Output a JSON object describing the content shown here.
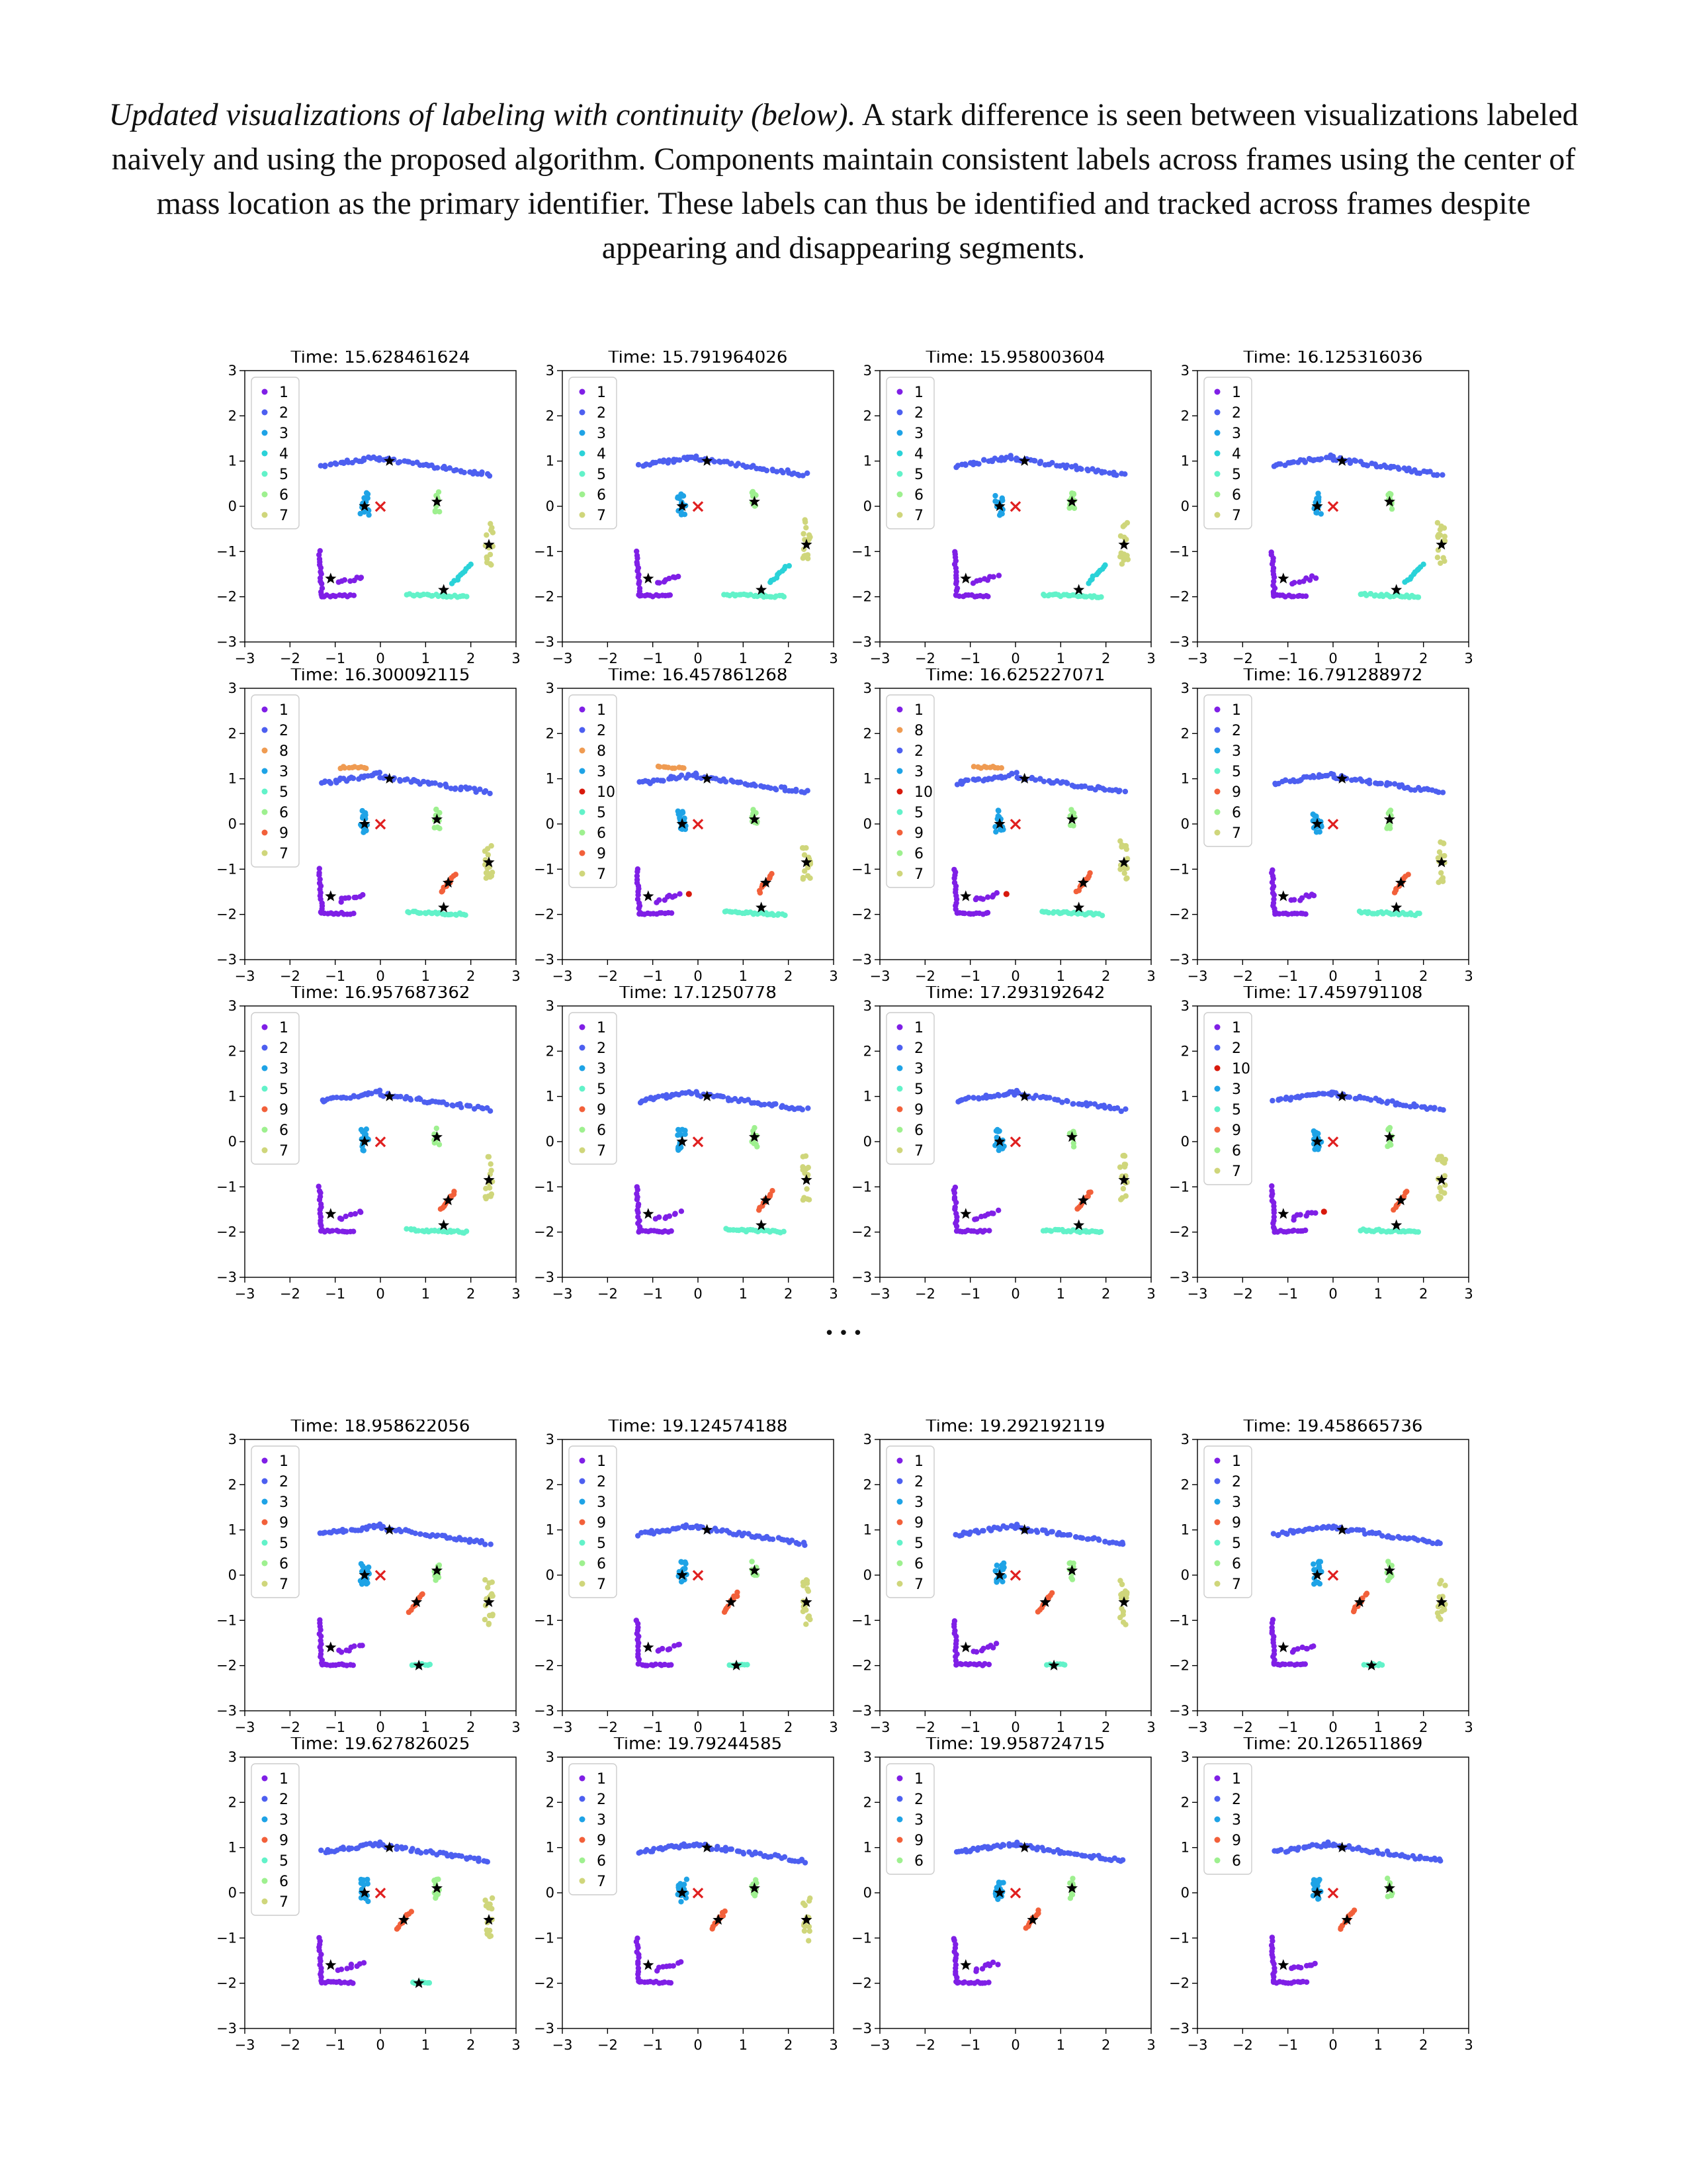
{
  "caption": {
    "lead": "Updated visualizations of labeling with continuity (below).",
    "body": " A stark difference is seen between visualizations labeled naively and using the proposed algorithm. Components maintain consistent labels across frames using the center of mass location as the primary identifier. These labels can thus be identified and tracked across frames despite appearing and disappearing segments."
  },
  "ellipsis": "…",
  "label_colors": {
    "1": "#7f1fe6",
    "2": "#4d5ff0",
    "3": "#1ea3e6",
    "4": "#2ad2d8",
    "5": "#62f2c9",
    "6": "#9ef08f",
    "7": "#cfd67b",
    "8": "#ef9b52",
    "9": "#f2603a",
    "10": "#d8190c"
  },
  "chart_data": [
    {
      "type": "scatter",
      "title": "Time: 15.628461624",
      "legend": [
        "1",
        "2",
        "3",
        "4",
        "5",
        "6",
        "7"
      ],
      "xlim": [
        -3,
        3
      ],
      "ylim": [
        -3,
        3
      ]
    },
    {
      "type": "scatter",
      "title": "Time: 15.791964026",
      "legend": [
        "1",
        "2",
        "3",
        "4",
        "5",
        "6",
        "7"
      ],
      "xlim": [
        -3,
        3
      ],
      "ylim": [
        -3,
        3
      ]
    },
    {
      "type": "scatter",
      "title": "Time: 15.958003604",
      "legend": [
        "1",
        "2",
        "3",
        "4",
        "5",
        "6",
        "7"
      ],
      "xlim": [
        -3,
        3
      ],
      "ylim": [
        -3,
        3
      ]
    },
    {
      "type": "scatter",
      "title": "Time: 16.125316036",
      "legend": [
        "1",
        "2",
        "3",
        "4",
        "5",
        "6",
        "7"
      ],
      "xlim": [
        -3,
        3
      ],
      "ylim": [
        -3,
        3
      ]
    },
    {
      "type": "scatter",
      "title": "Time: 16.300092115",
      "legend": [
        "1",
        "2",
        "8",
        "3",
        "5",
        "6",
        "9",
        "7"
      ],
      "xlim": [
        -3,
        3
      ],
      "ylim": [
        -3,
        3
      ]
    },
    {
      "type": "scatter",
      "title": "Time: 16.457861268",
      "legend": [
        "1",
        "2",
        "8",
        "3",
        "10",
        "5",
        "6",
        "9",
        "7"
      ],
      "xlim": [
        -3,
        3
      ],
      "ylim": [
        -3,
        3
      ]
    },
    {
      "type": "scatter",
      "title": "Time: 16.625227071",
      "legend": [
        "1",
        "8",
        "2",
        "3",
        "10",
        "5",
        "9",
        "6",
        "7"
      ],
      "xlim": [
        -3,
        3
      ],
      "ylim": [
        -3,
        3
      ]
    },
    {
      "type": "scatter",
      "title": "Time: 16.791288972",
      "legend": [
        "1",
        "2",
        "3",
        "5",
        "9",
        "6",
        "7"
      ],
      "xlim": [
        -3,
        3
      ],
      "ylim": [
        -3,
        3
      ]
    },
    {
      "type": "scatter",
      "title": "Time: 16.957687362",
      "legend": [
        "1",
        "2",
        "3",
        "5",
        "9",
        "6",
        "7"
      ],
      "xlim": [
        -3,
        3
      ],
      "ylim": [
        -3,
        3
      ]
    },
    {
      "type": "scatter",
      "title": "Time: 17.1250778",
      "legend": [
        "1",
        "2",
        "3",
        "5",
        "9",
        "6",
        "7"
      ],
      "xlim": [
        -3,
        3
      ],
      "ylim": [
        -3,
        3
      ]
    },
    {
      "type": "scatter",
      "title": "Time: 17.293192642",
      "legend": [
        "1",
        "2",
        "3",
        "5",
        "9",
        "6",
        "7"
      ],
      "xlim": [
        -3,
        3
      ],
      "ylim": [
        -3,
        3
      ]
    },
    {
      "type": "scatter",
      "title": "Time: 17.459791108",
      "legend": [
        "1",
        "2",
        "10",
        "3",
        "5",
        "9",
        "6",
        "7"
      ],
      "xlim": [
        -3,
        3
      ],
      "ylim": [
        -3,
        3
      ]
    },
    {
      "type": "scatter",
      "title": "Time: 18.958622056",
      "legend": [
        "1",
        "2",
        "3",
        "9",
        "5",
        "6",
        "7"
      ],
      "xlim": [
        -3,
        3
      ],
      "ylim": [
        -3,
        3
      ]
    },
    {
      "type": "scatter",
      "title": "Time: 19.124574188",
      "legend": [
        "1",
        "2",
        "3",
        "9",
        "5",
        "6",
        "7"
      ],
      "xlim": [
        -3,
        3
      ],
      "ylim": [
        -3,
        3
      ]
    },
    {
      "type": "scatter",
      "title": "Time: 19.292192119",
      "legend": [
        "1",
        "2",
        "3",
        "9",
        "5",
        "6",
        "7"
      ],
      "xlim": [
        -3,
        3
      ],
      "ylim": [
        -3,
        3
      ]
    },
    {
      "type": "scatter",
      "title": "Time: 19.458665736",
      "legend": [
        "1",
        "2",
        "3",
        "9",
        "5",
        "6",
        "7"
      ],
      "xlim": [
        -3,
        3
      ],
      "ylim": [
        -3,
        3
      ]
    },
    {
      "type": "scatter",
      "title": "Time: 19.627826025",
      "legend": [
        "1",
        "2",
        "3",
        "9",
        "5",
        "6",
        "7"
      ],
      "xlim": [
        -3,
        3
      ],
      "ylim": [
        -3,
        3
      ]
    },
    {
      "type": "scatter",
      "title": "Time: 19.79244585",
      "legend": [
        "1",
        "2",
        "3",
        "9",
        "6",
        "7"
      ],
      "xlim": [
        -3,
        3
      ],
      "ylim": [
        -3,
        3
      ]
    },
    {
      "type": "scatter",
      "title": "Time: 19.958724715",
      "legend": [
        "1",
        "2",
        "3",
        "9",
        "6"
      ],
      "xlim": [
        -3,
        3
      ],
      "ylim": [
        -3,
        3
      ]
    },
    {
      "type": "scatter",
      "title": "Time: 20.126511869",
      "legend": [
        "1",
        "2",
        "3",
        "9",
        "6"
      ],
      "xlim": [
        -3,
        3
      ],
      "ylim": [
        -3,
        3
      ]
    }
  ]
}
